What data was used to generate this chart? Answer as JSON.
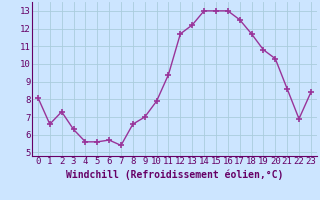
{
  "x": [
    0,
    1,
    2,
    3,
    4,
    5,
    6,
    7,
    8,
    9,
    10,
    11,
    12,
    13,
    14,
    15,
    16,
    17,
    18,
    19,
    20,
    21,
    22,
    23
  ],
  "y": [
    8.1,
    6.6,
    7.3,
    6.3,
    5.6,
    5.6,
    5.7,
    5.4,
    6.6,
    7.0,
    7.9,
    9.4,
    11.7,
    12.2,
    13.0,
    13.0,
    13.0,
    12.5,
    11.7,
    10.8,
    10.3,
    8.6,
    6.9,
    8.4
  ],
  "line_color": "#993399",
  "marker": "+",
  "marker_size": 4,
  "marker_lw": 1.2,
  "bg_color": "#cce5ff",
  "grid_color": "#aaccdd",
  "xlabel": "Windchill (Refroidissement éolien,°C)",
  "xlabel_color": "#660066",
  "tick_color": "#660066",
  "xlabel_fontsize": 7,
  "tick_fontsize": 6.5,
  "ylim": [
    4.8,
    13.5
  ],
  "yticks": [
    5,
    6,
    7,
    8,
    9,
    10,
    11,
    12,
    13
  ],
  "xlim": [
    -0.5,
    23.5
  ],
  "xticks": [
    0,
    1,
    2,
    3,
    4,
    5,
    6,
    7,
    8,
    9,
    10,
    11,
    12,
    13,
    14,
    15,
    16,
    17,
    18,
    19,
    20,
    21,
    22,
    23
  ],
  "line_width": 1.0,
  "spine_color": "#660066"
}
